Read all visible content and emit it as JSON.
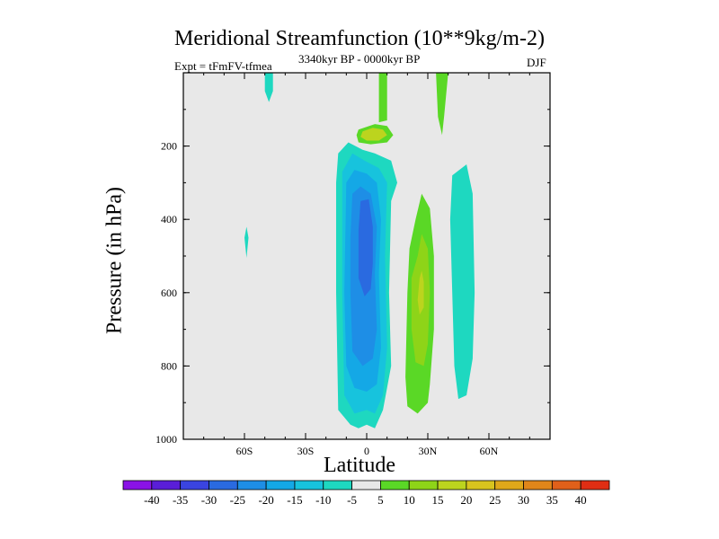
{
  "chart_data": {
    "type": "filled-contour",
    "title": "Meridional Streamfunction (10**9kg/m-2)",
    "left_string": "Expt = tFmFV-tfmea",
    "center_string": "3340kyr BP - 0000kyr BP",
    "right_string": "DJF",
    "xlabel": "Latitude",
    "ylabel": "Pressure (in hPa)",
    "x_range": [
      -90,
      90
    ],
    "y_range": [
      0,
      1000
    ],
    "y_inverted": true,
    "xticks": [
      {
        "value": -60,
        "label": "60S"
      },
      {
        "value": -30,
        "label": "30S"
      },
      {
        "value": 0,
        "label": "0"
      },
      {
        "value": 30,
        "label": "30N"
      },
      {
        "value": 60,
        "label": "60N"
      }
    ],
    "yticks": [
      200,
      400,
      600,
      800,
      1000
    ],
    "colorbar": {
      "labels": [
        "-40",
        "-35",
        "-30",
        "-25",
        "-20",
        "-15",
        "-10",
        "-5",
        "5",
        "10",
        "15",
        "20",
        "25",
        "30",
        "35",
        "40"
      ],
      "colors": [
        "#8a12e6",
        "#5a1ed8",
        "#3a44e0",
        "#2a6ae0",
        "#1e8ee6",
        "#14a8e6",
        "#17c3dd",
        "#1ed8c0",
        "#e8e8e8",
        "#5ad826",
        "#8ed418",
        "#bcd41e",
        "#d8c41e",
        "#dfa81a",
        "#e0861a",
        "#e0601a",
        "#e02e14"
      ]
    },
    "regions": [
      {
        "fill": "#1ed8c0",
        "points": [
          [
            -50,
            0
          ],
          [
            -46,
            0
          ],
          [
            -46,
            50
          ],
          [
            -48,
            80
          ],
          [
            -50,
            50
          ]
        ]
      },
      {
        "fill": "#1ed8c0",
        "points": [
          [
            -59,
            420
          ],
          [
            -58,
            450
          ],
          [
            -59,
            505
          ],
          [
            -60,
            450
          ]
        ]
      },
      {
        "fill": "#5ad826",
        "points": [
          [
            6,
            0
          ],
          [
            10,
            0
          ],
          [
            10,
            130
          ],
          [
            6,
            135
          ]
        ]
      },
      {
        "fill": "#5ad826",
        "points": [
          [
            34,
            0
          ],
          [
            40,
            0
          ],
          [
            39,
            60
          ],
          [
            38,
            120
          ],
          [
            37,
            170
          ],
          [
            35,
            120
          ]
        ]
      },
      {
        "fill": "#5ad826",
        "points": [
          [
            -4,
            155
          ],
          [
            4,
            140
          ],
          [
            10,
            145
          ],
          [
            13,
            170
          ],
          [
            10,
            190
          ],
          [
            2,
            195
          ],
          [
            -4,
            190
          ],
          [
            -5,
            170
          ]
        ]
      },
      {
        "fill": "#bcd41e",
        "points": [
          [
            -2,
            160
          ],
          [
            3,
            150
          ],
          [
            8,
            155
          ],
          [
            10,
            170
          ],
          [
            6,
            185
          ],
          [
            0,
            185
          ],
          [
            -3,
            175
          ]
        ]
      },
      {
        "fill": "#1ed8c0",
        "points": [
          [
            -14,
            220
          ],
          [
            -9,
            190
          ],
          [
            -2,
            210
          ],
          [
            4,
            220
          ],
          [
            12,
            240
          ],
          [
            15,
            300
          ],
          [
            12,
            350
          ],
          [
            11,
            600
          ],
          [
            12,
            800
          ],
          [
            8,
            920
          ],
          [
            4,
            970
          ],
          [
            0,
            960
          ],
          [
            -4,
            970
          ],
          [
            -8,
            960
          ],
          [
            -14,
            920
          ],
          [
            -15,
            600
          ],
          [
            -15,
            300
          ]
        ]
      },
      {
        "fill": "#17c3dd",
        "points": [
          [
            -12,
            270
          ],
          [
            -7,
            220
          ],
          [
            -1,
            240
          ],
          [
            6,
            260
          ],
          [
            10,
            300
          ],
          [
            9,
            500
          ],
          [
            10,
            750
          ],
          [
            8,
            880
          ],
          [
            4,
            930
          ],
          [
            0,
            920
          ],
          [
            -6,
            930
          ],
          [
            -11,
            880
          ],
          [
            -12,
            600
          ]
        ]
      },
      {
        "fill": "#14a8e6",
        "points": [
          [
            -10,
            300
          ],
          [
            -6,
            265
          ],
          [
            0,
            275
          ],
          [
            5,
            300
          ],
          [
            7,
            400
          ],
          [
            6,
            550
          ],
          [
            7,
            750
          ],
          [
            5,
            850
          ],
          [
            0,
            870
          ],
          [
            -6,
            860
          ],
          [
            -10,
            800
          ],
          [
            -11,
            600
          ]
        ]
      },
      {
        "fill": "#1e8ee6",
        "points": [
          [
            -7,
            330
          ],
          [
            -3,
            310
          ],
          [
            2,
            330
          ],
          [
            5,
            420
          ],
          [
            4,
            550
          ],
          [
            5,
            700
          ],
          [
            3,
            780
          ],
          [
            -2,
            800
          ],
          [
            -7,
            760
          ],
          [
            -8,
            600
          ],
          [
            -8,
            450
          ]
        ]
      },
      {
        "fill": "#2a6ae0",
        "points": [
          [
            -3,
            350
          ],
          [
            1,
            345
          ],
          [
            3,
            420
          ],
          [
            3,
            520
          ],
          [
            2,
            590
          ],
          [
            -1,
            610
          ],
          [
            -4,
            560
          ],
          [
            -4,
            430
          ]
        ]
      },
      {
        "fill": "#5ad826",
        "points": [
          [
            24,
            400
          ],
          [
            27,
            330
          ],
          [
            31,
            370
          ],
          [
            33,
            500
          ],
          [
            33,
            700
          ],
          [
            31,
            850
          ],
          [
            30,
            900
          ],
          [
            25,
            930
          ],
          [
            20,
            910
          ],
          [
            19,
            830
          ],
          [
            20,
            600
          ],
          [
            21,
            480
          ]
        ]
      },
      {
        "fill": "#8ed418",
        "points": [
          [
            25,
            500
          ],
          [
            27,
            440
          ],
          [
            30,
            480
          ],
          [
            31,
            600
          ],
          [
            30,
            740
          ],
          [
            28,
            800
          ],
          [
            24,
            790
          ],
          [
            22,
            700
          ],
          [
            22,
            560
          ]
        ]
      },
      {
        "fill": "#bcd41e",
        "points": [
          [
            26,
            560
          ],
          [
            27,
            540
          ],
          [
            28,
            570
          ],
          [
            28,
            640
          ],
          [
            26,
            660
          ],
          [
            25,
            620
          ]
        ]
      },
      {
        "fill": "#1ed8c0",
        "points": [
          [
            42,
            280
          ],
          [
            49,
            250
          ],
          [
            52,
            330
          ],
          [
            53,
            600
          ],
          [
            52,
            780
          ],
          [
            49,
            880
          ],
          [
            45,
            890
          ],
          [
            43,
            800
          ],
          [
            42,
            600
          ],
          [
            41,
            400
          ]
        ]
      }
    ]
  }
}
